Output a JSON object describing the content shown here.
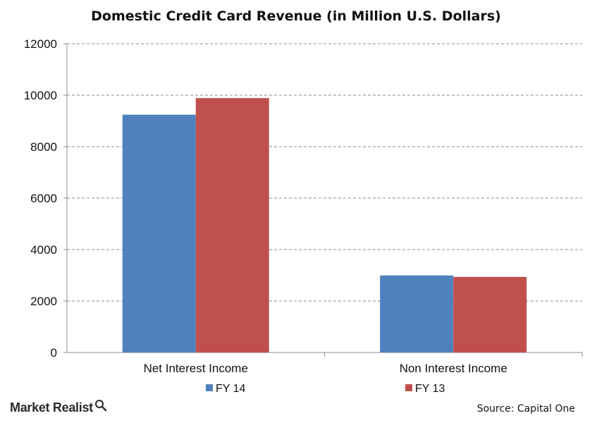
{
  "chart_data": {
    "type": "bar",
    "title": "Domestic Credit Card Revenue (in Million  U.S. Dollars)",
    "categories": [
      "Net Interest Income",
      "Non Interest Income"
    ],
    "series": [
      {
        "name": "FY 14",
        "color": "#4f81bd",
        "values": [
          9241,
          2994
        ]
      },
      {
        "name": "FY 13",
        "color": "#c0504d",
        "values": [
          9887,
          2938
        ]
      }
    ],
    "ylim": [
      0,
      12000
    ],
    "yticks": [
      0,
      2000,
      4000,
      6000,
      8000,
      10000,
      12000
    ],
    "grid": true,
    "legend_position": "bottom"
  },
  "footer": {
    "brand": "Market Realist",
    "brand_icon": "magnifier-icon",
    "source": "Source: Capital One"
  }
}
